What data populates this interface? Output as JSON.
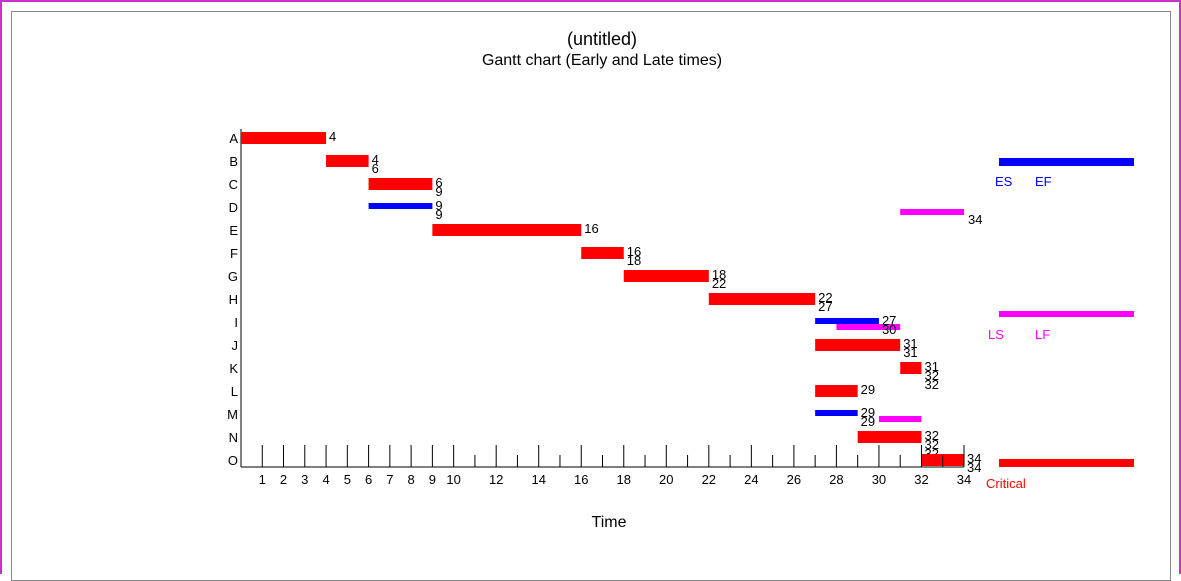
{
  "chart_data": {
    "type": "gantt",
    "title": "(untitled)",
    "subtitle": "Gantt chart (Early and Late times)",
    "xlabel": "Time",
    "xlim": [
      0,
      34
    ],
    "x_tick_labels": [
      "1",
      "2",
      "3",
      "4",
      "5",
      "6",
      "7",
      "8",
      "9",
      "10",
      "12",
      "14",
      "16",
      "18",
      "20",
      "22",
      "24",
      "26",
      "28",
      "30",
      "32",
      "34"
    ],
    "colors": {
      "critical": "#ff0000",
      "early": "#0000ff",
      "late": "#ff00ff"
    },
    "tasks": [
      {
        "name": "A",
        "critical": true,
        "es": 0,
        "ef": 4,
        "ls": 0,
        "lf": 4,
        "labels": [
          "4"
        ]
      },
      {
        "name": "B",
        "critical": true,
        "es": 4,
        "ef": 6,
        "ls": 4,
        "lf": 6,
        "labels": [
          "4",
          "6"
        ]
      },
      {
        "name": "C",
        "critical": true,
        "es": 6,
        "ef": 9,
        "ls": 6,
        "lf": 9,
        "labels": [
          "6",
          "9"
        ]
      },
      {
        "name": "D",
        "critical": false,
        "es": 6,
        "ef": 9,
        "ls": 31,
        "lf": 34,
        "labels": [
          "9",
          "9"
        ],
        "late_label": "34"
      },
      {
        "name": "E",
        "critical": true,
        "es": 9,
        "ef": 16,
        "ls": 9,
        "lf": 16,
        "labels": [
          "16"
        ]
      },
      {
        "name": "F",
        "critical": true,
        "es": 16,
        "ef": 18,
        "ls": 16,
        "lf": 18,
        "labels": [
          "16",
          "18"
        ]
      },
      {
        "name": "G",
        "critical": true,
        "es": 18,
        "ef": 22,
        "ls": 18,
        "lf": 22,
        "labels": [
          "18",
          "22"
        ]
      },
      {
        "name": "H",
        "critical": true,
        "es": 22,
        "ef": 27,
        "ls": 22,
        "lf": 27,
        "labels": [
          "22",
          "27"
        ]
      },
      {
        "name": "I",
        "critical": false,
        "es": 27,
        "ef": 30,
        "ls": 28,
        "lf": 31,
        "labels": [
          "27",
          "30"
        ]
      },
      {
        "name": "J",
        "critical": true,
        "es": 27,
        "ef": 31,
        "ls": 27,
        "lf": 31,
        "labels": [
          "31",
          "31"
        ]
      },
      {
        "name": "K",
        "critical": true,
        "es": 31,
        "ef": 32,
        "ls": 31,
        "lf": 32,
        "labels": [
          "31",
          "32",
          "32"
        ]
      },
      {
        "name": "L",
        "critical": true,
        "es": 27,
        "ef": 29,
        "ls": 27,
        "lf": 29,
        "labels": [
          "29"
        ]
      },
      {
        "name": "M",
        "critical": false,
        "es": 27,
        "ef": 29,
        "ls": 30,
        "lf": 32,
        "labels": [
          "29",
          "29"
        ]
      },
      {
        "name": "N",
        "critical": true,
        "es": 29,
        "ef": 32,
        "ls": 29,
        "lf": 32,
        "labels": [
          "32",
          "32",
          "32"
        ]
      },
      {
        "name": "O",
        "critical": true,
        "es": 32,
        "ef": 34,
        "ls": 32,
        "lf": 34,
        "labels": [
          "34",
          "34"
        ]
      }
    ],
    "legend": {
      "placement": "right",
      "early": [
        "ES",
        "EF"
      ],
      "late": [
        "LS",
        "LF"
      ],
      "critical": "Critical"
    }
  }
}
